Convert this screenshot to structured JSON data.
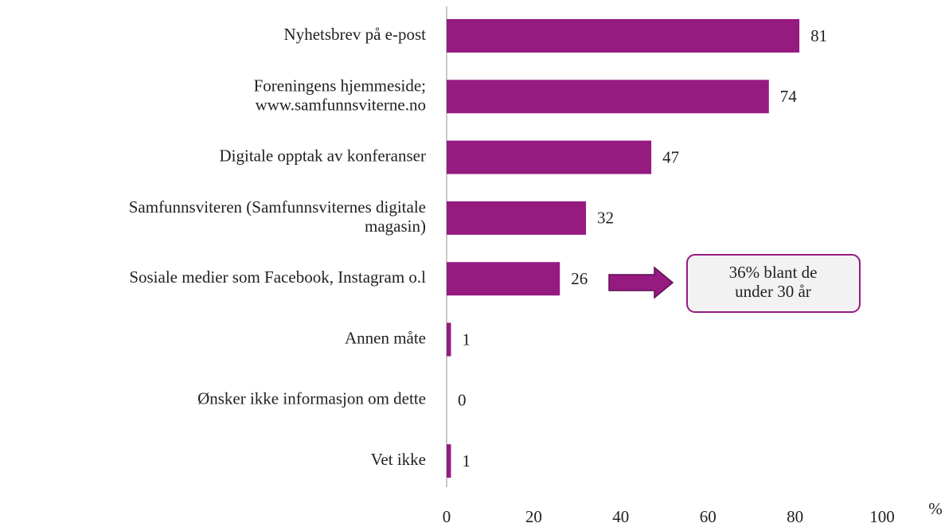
{
  "chart_data": {
    "type": "barh",
    "categories": [
      "Nyhetsbrev på e-post",
      "Foreningens hjemmeside;\nwww.samfunnsviterne.no",
      "Digitale opptak av konferanser",
      "Samfunnsviteren (Samfunnsviternes digitale\nmagasin)",
      "Sosiale medier som Facebook, Instagram o.l",
      "Annen måte",
      "Ønsker ikke informasjon om dette",
      "Vet ikke"
    ],
    "values": [
      81,
      74,
      47,
      32,
      26,
      1,
      0,
      1
    ],
    "color": "#951b81",
    "xlim": [
      0,
      100
    ],
    "xticks": [
      0,
      20,
      40,
      60,
      80,
      100
    ],
    "xlabel": "%",
    "annotation": "36% blant de\nunder 30 år"
  }
}
